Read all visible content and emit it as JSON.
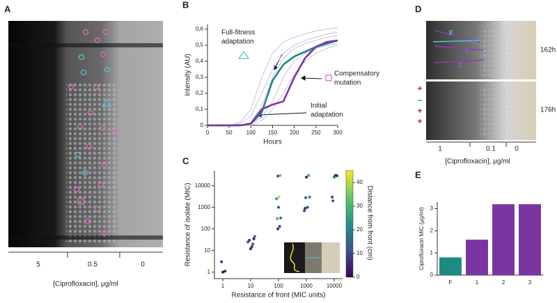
{
  "panels": {
    "A": {
      "letter": "A",
      "axis_labels": [
        "5",
        "0.5",
        "0"
      ],
      "xlabel": "[Ciprofloxacin], μg/ml"
    },
    "D": {
      "letter": "D",
      "time_labels": [
        "162h",
        "176h"
      ],
      "markers": [
        "F",
        "2",
        "1",
        "3"
      ],
      "signs": [
        "+",
        "−",
        "+",
        "+"
      ],
      "axis_labels": [
        "1",
        "0.1",
        "0"
      ],
      "xlabel": "[Ciprofloxacin], μg/ml"
    }
  },
  "chart_data": [
    {
      "type": "line",
      "letter": "B",
      "xlabel": "Hours",
      "ylabel": "Intensity (AU)",
      "x": [
        0,
        25,
        50,
        75,
        100,
        125,
        150,
        175,
        200,
        225,
        250,
        275,
        300
      ],
      "xlim": [
        0,
        300
      ],
      "xticks": [
        0,
        50,
        100,
        150,
        200,
        250,
        300
      ],
      "ylim": [
        0,
        0.63
      ],
      "yticks": [
        0,
        {
          "value": 0.1,
          "label": "0,1"
        },
        {
          "value": 0.2,
          "label": "0,2"
        },
        {
          "value": 0.3,
          "label": "0,3"
        },
        {
          "value": 0.4,
          "label": "0,4"
        },
        {
          "value": 0.5,
          "label": "0,5"
        },
        {
          "value": 0.6,
          "label": "0,6"
        }
      ],
      "series": [
        {
          "color": "#c7b6de",
          "linewidth": 0.9,
          "values": [
            0,
            0,
            0,
            0.01,
            0.06,
            0.2,
            0.35,
            0.45,
            0.5,
            0.53,
            0.55,
            0.57,
            0.58
          ]
        },
        {
          "color": "#c7b6de",
          "linewidth": 0.9,
          "values": [
            0,
            0,
            0,
            0,
            0.02,
            0.12,
            0.3,
            0.42,
            0.48,
            0.51,
            0.53,
            0.55,
            0.56
          ]
        },
        {
          "color": "#c7b6de",
          "linewidth": 0.9,
          "values": [
            0,
            0,
            0,
            0,
            0.01,
            0.05,
            0.15,
            0.3,
            0.4,
            0.45,
            0.48,
            0.5,
            0.51
          ]
        },
        {
          "color": "#c7b6de",
          "linewidth": 0.9,
          "values": [
            0,
            0,
            0,
            0.02,
            0.1,
            0.3,
            0.45,
            0.52,
            0.55,
            0.57,
            0.59,
            0.6,
            0.61
          ]
        },
        {
          "color": "#c7b6de",
          "linewidth": 0.9,
          "values": [
            0,
            0,
            0,
            0,
            0,
            0.03,
            0.1,
            0.2,
            0.32,
            0.4,
            0.45,
            0.48,
            0.5
          ]
        },
        {
          "color": "#1d8a84",
          "linewidth": 2.6,
          "values": [
            0,
            0,
            0,
            0,
            0.01,
            0.08,
            0.28,
            0.38,
            0.43,
            0.46,
            0.49,
            0.51,
            0.53
          ]
        },
        {
          "color": "#7b35a0",
          "linewidth": 2.6,
          "values": [
            0,
            0,
            0,
            0,
            0.01,
            0.1,
            0.13,
            0.15,
            0.3,
            0.42,
            0.49,
            0.52,
            0.53
          ]
        }
      ],
      "annotations": [
        [
          "Full-fitness",
          "adaptation"
        ],
        [
          "Compensatory",
          "mutation"
        ],
        [
          "Initial",
          "adaptation"
        ]
      ]
    },
    {
      "type": "scatter",
      "letter": "C",
      "xlabel": "Resistance of front (MIC units)",
      "ylabel": "Resistance of isolate (MIC)",
      "xlog": true,
      "ylog": true,
      "xlim": [
        0.5,
        20000
      ],
      "ylim": [
        0.5,
        50000
      ],
      "xticks": [
        1,
        10,
        100,
        1000,
        10000
      ],
      "yticks": [
        1,
        10,
        100,
        1000,
        10000
      ],
      "x": [
        1,
        1.2,
        0.9,
        10,
        12,
        9,
        14,
        11,
        8,
        13,
        95,
        110,
        90,
        120,
        100,
        85,
        105,
        115,
        95,
        900,
        1100,
        1300,
        950,
        1200,
        1000,
        850,
        9000,
        11000,
        13000,
        10000,
        8500,
        12000
      ],
      "values": [
        1,
        1.1,
        3,
        12,
        20,
        30,
        45,
        15,
        25,
        35,
        100,
        130,
        300,
        320,
        1000,
        2500,
        3000,
        30000,
        28000,
        900,
        1000,
        3000,
        2800,
        30000,
        25000,
        700,
        2000,
        30000,
        28000,
        25000,
        3000,
        30000
      ],
      "c": [
        2,
        4,
        8,
        5,
        10,
        7,
        20,
        6,
        12,
        3,
        5,
        8,
        30,
        15,
        10,
        25,
        40,
        35,
        12,
        6,
        10,
        20,
        14,
        28,
        5,
        9,
        12,
        8,
        30,
        18,
        10,
        4
      ],
      "clim": [
        0,
        45
      ],
      "cticks": [
        0,
        10,
        20,
        30,
        40
      ],
      "clabel": "Distance from front (cm)"
    },
    {
      "type": "bar",
      "letter": "E",
      "ylabel": "Ciprofloxacin MIC  (μg/ml)",
      "categories": [
        "F",
        "1",
        "2",
        "3"
      ],
      "values": [
        0.8,
        1.6,
        3.2,
        3.2
      ],
      "colors": [
        "#1d8a84",
        "#7b35a0",
        "#7b35a0",
        "#7b35a0"
      ],
      "ylim": [
        0,
        3.3
      ],
      "yticks": [
        0,
        1,
        2,
        3
      ]
    }
  ]
}
